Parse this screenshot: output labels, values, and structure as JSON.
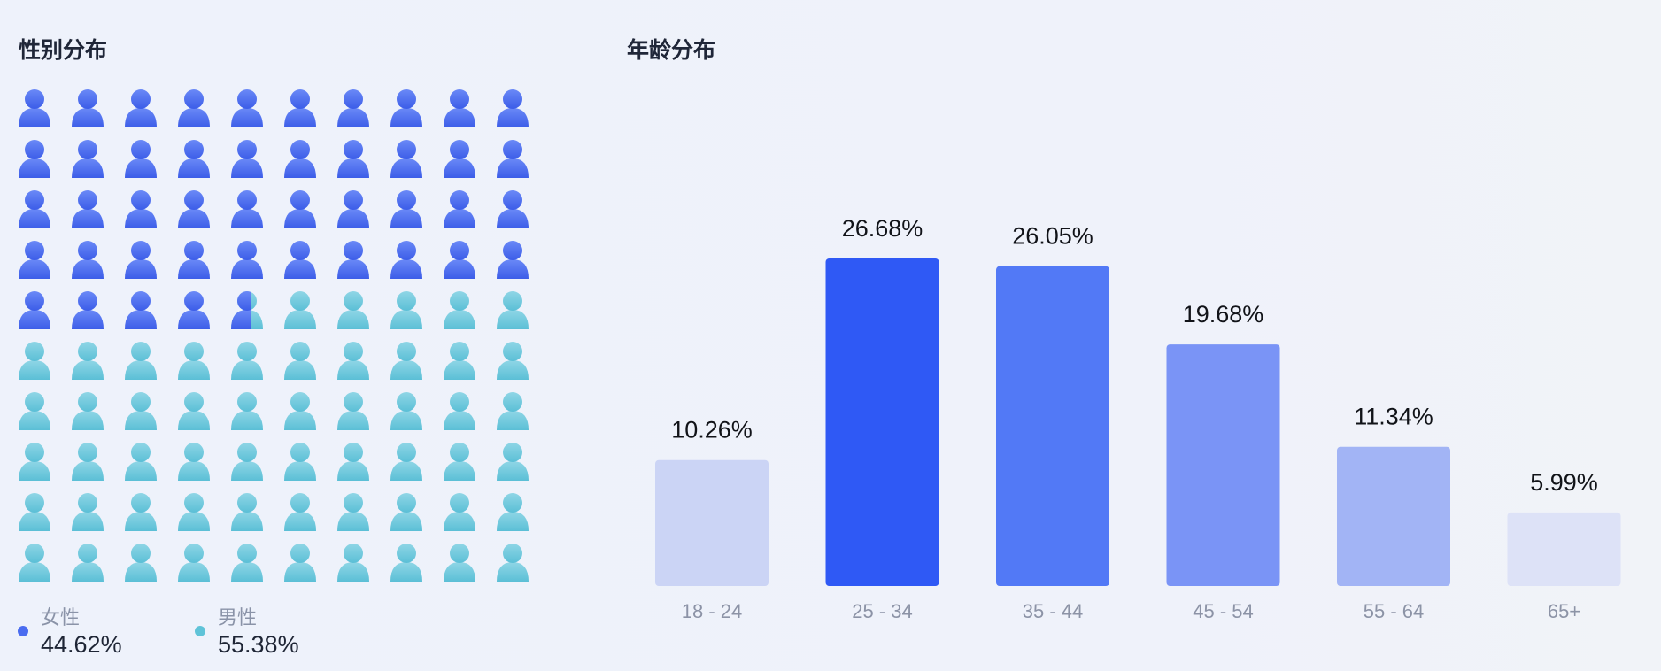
{
  "gender_section": {
    "title": "性别分布"
  },
  "age_section": {
    "title": "年龄分布"
  },
  "legend": {
    "female": {
      "label": "女性",
      "value": "44.62%",
      "color": "#4a6cf0"
    },
    "male": {
      "label": "男性",
      "value": "55.38%",
      "color": "#5fc3d8"
    }
  },
  "chart_data": [
    {
      "type": "waffle",
      "rows": 10,
      "columns": 10,
      "series": [
        {
          "name": "女性",
          "value": 44.62,
          "color": "#4a6cf0"
        },
        {
          "name": "男性",
          "value": 55.38,
          "color": "#5fc3d8"
        }
      ],
      "title": "性别分布"
    },
    {
      "type": "bar",
      "title": "年龄分布",
      "categories": [
        "18 - 24",
        "25 - 34",
        "35 - 44",
        "45 - 54",
        "55 - 64",
        "65+"
      ],
      "values": [
        10.26,
        26.68,
        26.05,
        19.68,
        11.34,
        5.99
      ],
      "value_labels": [
        "10.26%",
        "26.68%",
        "26.05%",
        "19.68%",
        "11.34%",
        "5.99%"
      ],
      "colors": [
        "#cbd4f5",
        "#2f59f5",
        "#5279f6",
        "#7a94f6",
        "#a2b4f5",
        "#dde2f7"
      ],
      "ylim": [
        0,
        26.68
      ],
      "grid": false,
      "xlabel": "",
      "ylabel": ""
    }
  ]
}
